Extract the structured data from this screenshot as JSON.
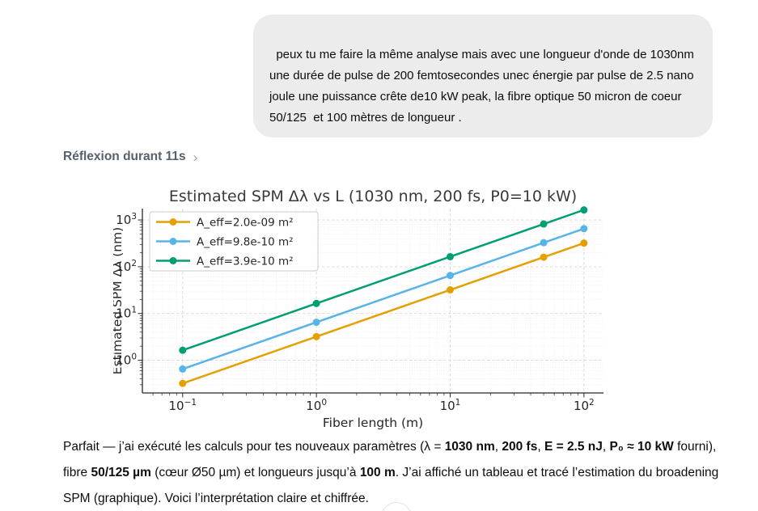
{
  "conversation": {
    "user_message": "peux tu me faire la même analyse mais avec une longueur d'onde de 1030nm une durée de pulse de 200 femtosecondes unec énergie par pulse de 2.5 nano joule une puissance crête de10 kW peak, la fibre optique 50 micron de coeur 50/125  et 100 mètres de longueur .",
    "thinking_label": "Réflexion durant 11s",
    "icons": {
      "thinking_chevron": "›",
      "scroll_down": "⌄"
    }
  },
  "chart_data": {
    "type": "line",
    "title": "Estimated SPM Δλ vs L (1030 nm, 200 fs, P0=10 kW)",
    "xlabel": "Fiber length (m)",
    "ylabel": "Estimated SPM Δλ (nm)",
    "xscale": "log",
    "yscale": "log",
    "xlim": [
      0.05,
      140
    ],
    "ylim": [
      0.2,
      1750
    ],
    "x_ticks": [
      0.1,
      1,
      10,
      100
    ],
    "y_ticks": [
      1,
      10,
      100,
      1000
    ],
    "grid": true,
    "legend_position": "upper left",
    "x": [
      0.1,
      1,
      10,
      50,
      100
    ],
    "series": [
      {
        "name": "A_eff=2.0e-09 m²",
        "color": "#E69F00",
        "values": [
          0.32,
          3.2,
          32,
          160,
          320
        ]
      },
      {
        "name": "A_eff=9.8e-10 m²",
        "color": "#56B4E9",
        "values": [
          0.65,
          6.5,
          65,
          327,
          653
        ]
      },
      {
        "name": "A_eff=3.9e-10 m²",
        "color": "#009E73",
        "values": [
          1.64,
          16.4,
          164,
          820,
          1640
        ]
      }
    ]
  },
  "assistant_text": {
    "runs": [
      {
        "t": "Parfait — j’ai exécuté les calculs pour tes nouveaux paramètres (λ = ",
        "b": false
      },
      {
        "t": "1030 nm",
        "b": true
      },
      {
        "t": ", ",
        "b": false
      },
      {
        "t": "200 fs",
        "b": true
      },
      {
        "t": ", ",
        "b": false
      },
      {
        "t": "E = 2.5 nJ",
        "b": true
      },
      {
        "t": ", ",
        "b": false
      },
      {
        "t": "P₀ ≈ 10 kW",
        "b": true
      },
      {
        "t": " fourni), fibre ",
        "b": false
      },
      {
        "t": "50/125 µm",
        "b": true
      },
      {
        "t": " (cœur Ø50 µm) et longueurs jusqu’à ",
        "b": false
      },
      {
        "t": "100 m",
        "b": true
      },
      {
        "t": ". J’ai affiché un tableau et tracé l’estimation du broadening SPM (graphique). Voici l’interprétation claire et chiffrée.",
        "b": false
      }
    ]
  },
  "colors": {
    "user_bubble_bg": "#ececec",
    "thinking_text": "#56616e",
    "body_text": "#0d0d0d",
    "chart_text": "#262626",
    "grid_major": "#d8d8d8",
    "grid_minor": "#eaeaea"
  }
}
